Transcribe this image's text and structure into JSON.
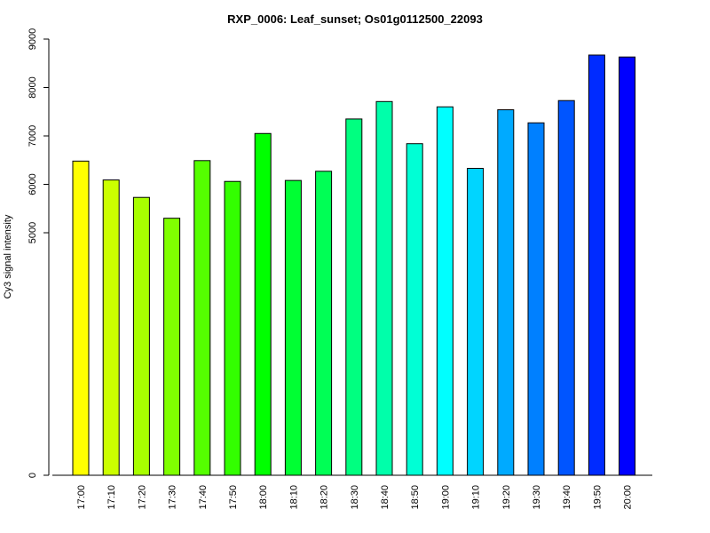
{
  "chart_data": {
    "type": "bar",
    "title": "RXP_0006: Leaf_sunset; Os01g0112500_22093",
    "xlabel": "",
    "ylabel": "Cy3 signal intensity",
    "ylim": [
      0,
      9000
    ],
    "y_ticks": [
      0,
      5000,
      6000,
      7000,
      8000,
      9000
    ],
    "y_scale": "compressed between 0 and 5000 (axis break style spacing)",
    "grid": false,
    "legend": "none",
    "categories": [
      "17:00",
      "17:10",
      "17:20",
      "17:30",
      "17:40",
      "17:50",
      "18:00",
      "18:10",
      "18:20",
      "18:30",
      "18:40",
      "18:50",
      "19:00",
      "19:10",
      "19:20",
      "19:30",
      "19:40",
      "19:50",
      "20:00"
    ],
    "values": [
      6480,
      6090,
      5730,
      5300,
      6490,
      6060,
      7050,
      6080,
      6270,
      7350,
      7710,
      6840,
      7600,
      6330,
      7540,
      7270,
      7730,
      8670,
      8630
    ],
    "colors": [
      "#ffff00",
      "#ccff00",
      "#a8ff00",
      "#80ff00",
      "#55ff00",
      "#33ff00",
      "#00ff00",
      "#00ff33",
      "#00ff55",
      "#00ff80",
      "#00ffaa",
      "#00ffd5",
      "#00ffff",
      "#00d5ff",
      "#00aaff",
      "#0080ff",
      "#0055ff",
      "#002bff",
      "#0000ff"
    ]
  }
}
